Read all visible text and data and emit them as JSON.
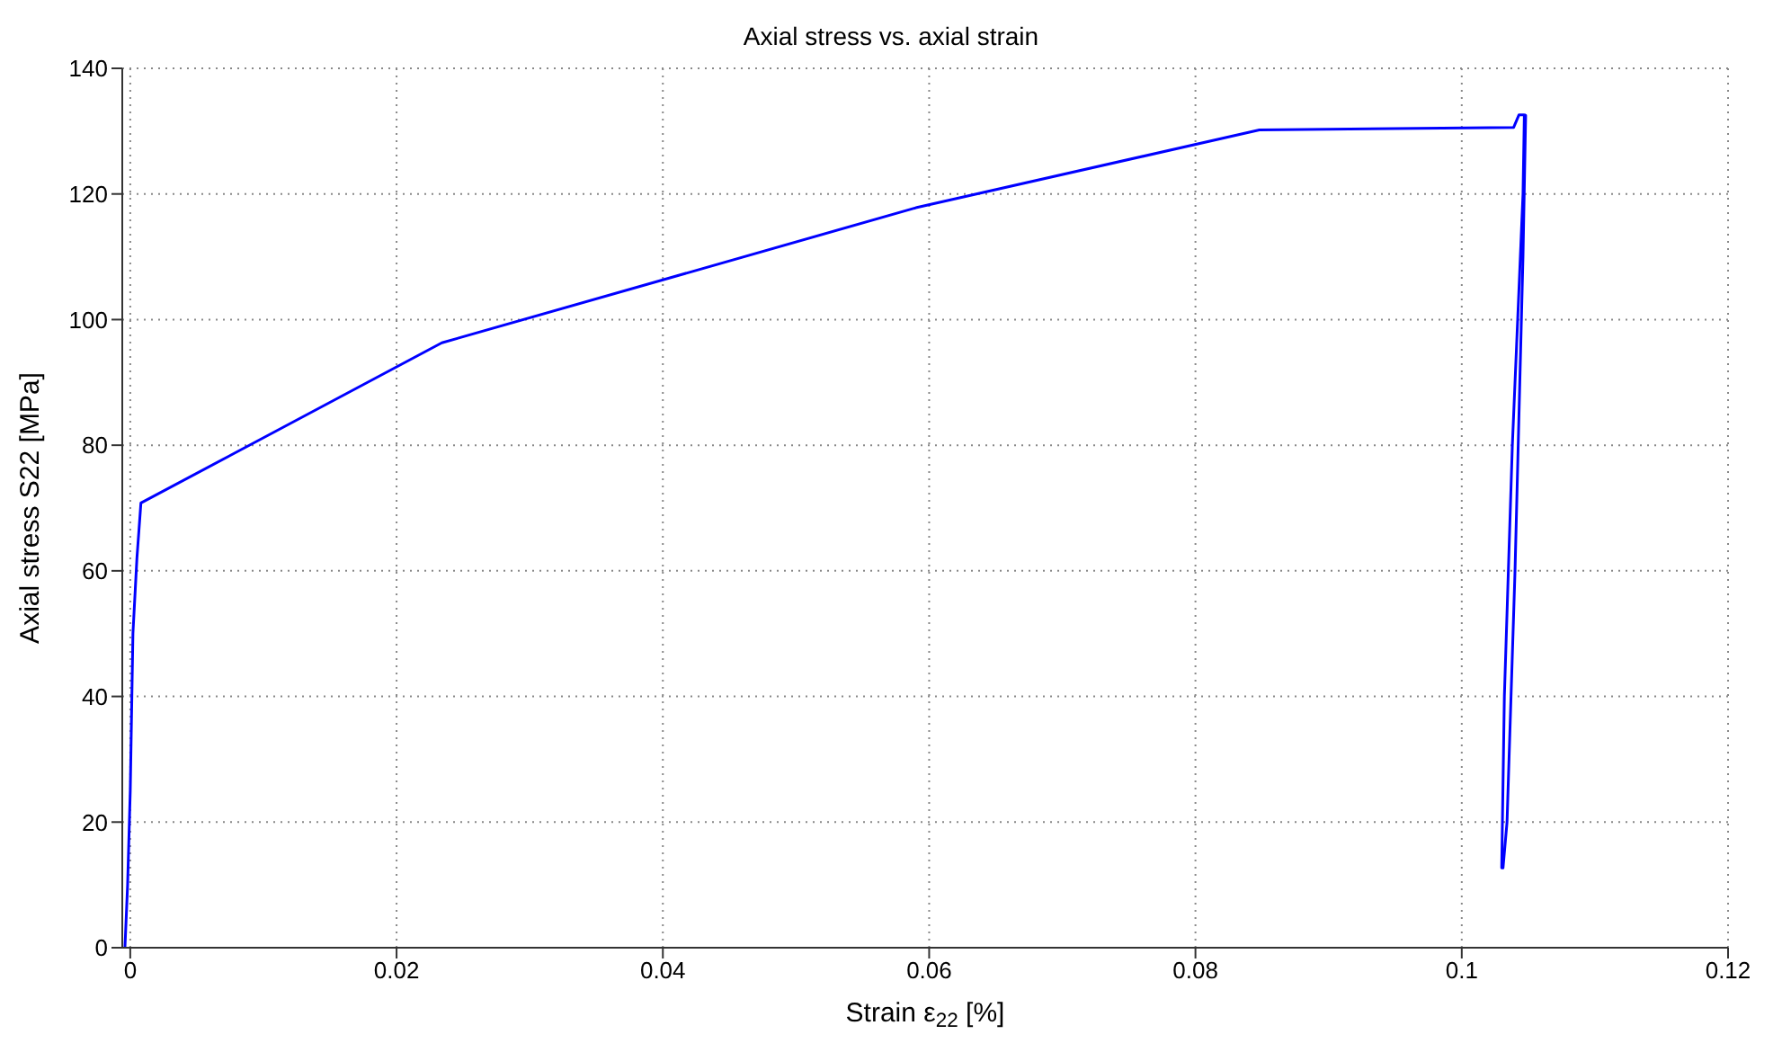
{
  "chart_data": {
    "type": "line",
    "title": "Axial stress vs. axial strain",
    "xlabel": "Strain ε$_{22}$ [%]",
    "ylabel": "Axial stress S22 [MPa]",
    "series": [
      {
        "color": "#0000ff",
        "x": [
          -0.0004,
          -0.0002,
          0.0,
          0.0002,
          0.0005,
          0.0008,
          0.0234,
          0.059,
          0.0848,
          0.1039,
          0.1043,
          0.1047,
          0.1046,
          0.1038,
          0.1032,
          0.103,
          0.1031,
          0.1034,
          0.104,
          0.1046,
          0.1048,
          0.1047
        ],
        "values": [
          0,
          10,
          25,
          50,
          62,
          70.8,
          96.3,
          117.8,
          130.2,
          130.6,
          132.6,
          132.6,
          120,
          80,
          40,
          12.7,
          12.7,
          20,
          60,
          110,
          132.5,
          132.6
        ]
      }
    ],
    "xlim": [
      -0.0006,
      0.12
    ],
    "xticks": [
      0,
      0.02,
      0.04,
      0.06,
      0.08,
      0.1,
      0.12
    ],
    "ylim": [
      0,
      140
    ],
    "yticks": [
      0,
      20,
      40,
      60,
      80,
      100,
      120,
      140
    ],
    "grid": true,
    "line_style": "solid",
    "marker": "none"
  }
}
